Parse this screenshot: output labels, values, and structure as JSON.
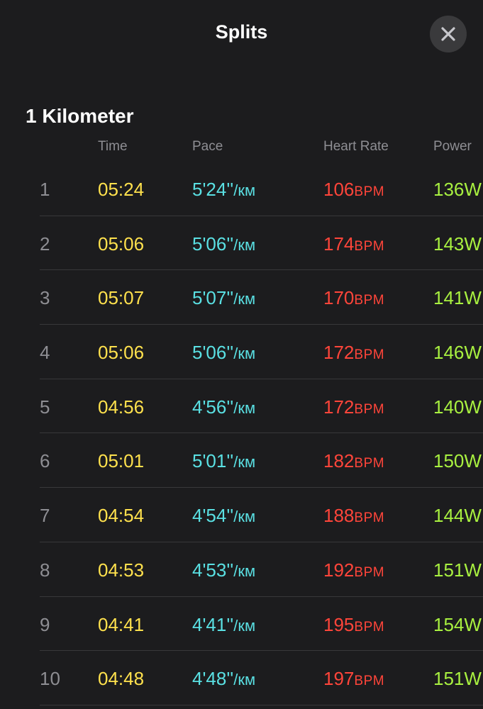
{
  "header": {
    "title": "Splits",
    "close_icon": "close-icon"
  },
  "section": {
    "title": "1 Kilometer"
  },
  "columns": {
    "time": "Time",
    "pace": "Pace",
    "heart_rate": "Heart Rate",
    "power": "Power"
  },
  "units": {
    "pace": "/км",
    "heart_rate": "BPM",
    "power": "W"
  },
  "colors": {
    "background": "#1c1c1e",
    "time": "#ffe14d",
    "pace": "#5ae0e3",
    "heart_rate": "#ff453a",
    "power": "#a8f040",
    "muted": "#8e8e93"
  },
  "splits": [
    {
      "index": "1",
      "time": "05:24",
      "pace": "5'24''",
      "heart_rate": "106",
      "power": "136"
    },
    {
      "index": "2",
      "time": "05:06",
      "pace": "5'06''",
      "heart_rate": "174",
      "power": "143"
    },
    {
      "index": "3",
      "time": "05:07",
      "pace": "5'07''",
      "heart_rate": "170",
      "power": "141"
    },
    {
      "index": "4",
      "time": "05:06",
      "pace": "5'06''",
      "heart_rate": "172",
      "power": "146"
    },
    {
      "index": "5",
      "time": "04:56",
      "pace": "4'56''",
      "heart_rate": "172",
      "power": "140"
    },
    {
      "index": "6",
      "time": "05:01",
      "pace": "5'01''",
      "heart_rate": "182",
      "power": "150"
    },
    {
      "index": "7",
      "time": "04:54",
      "pace": "4'54''",
      "heart_rate": "188",
      "power": "144"
    },
    {
      "index": "8",
      "time": "04:53",
      "pace": "4'53''",
      "heart_rate": "192",
      "power": "151"
    },
    {
      "index": "9",
      "time": "04:41",
      "pace": "4'41''",
      "heart_rate": "195",
      "power": "154"
    },
    {
      "index": "10",
      "time": "04:48",
      "pace": "4'48''",
      "heart_rate": "197",
      "power": "151"
    }
  ]
}
